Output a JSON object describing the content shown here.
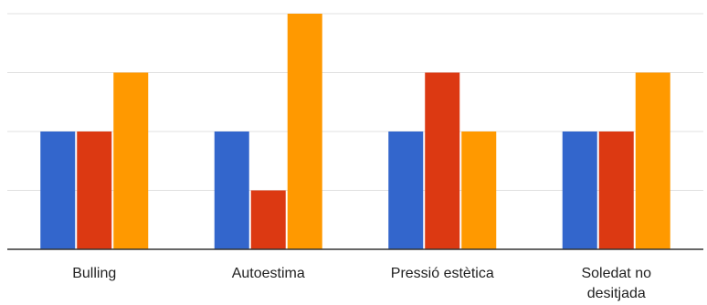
{
  "chart_data": {
    "type": "bar",
    "categories": [
      [
        "Bulling"
      ],
      [
        "Autoestima"
      ],
      [
        "Pressió estètica"
      ],
      [
        "Soledat no",
        "desitjada"
      ]
    ],
    "series": [
      {
        "values": [
          2,
          2,
          2,
          2
        ]
      },
      {
        "values": [
          2,
          1,
          3,
          2
        ]
      },
      {
        "values": [
          3,
          4,
          2,
          3
        ]
      }
    ],
    "colors": [
      "#3366cc",
      "#dc3912",
      "#ff9900"
    ],
    "ylim": [
      0,
      4
    ],
    "grid": true,
    "legend": "none",
    "title": "",
    "xlabel": "",
    "ylabel": ""
  }
}
